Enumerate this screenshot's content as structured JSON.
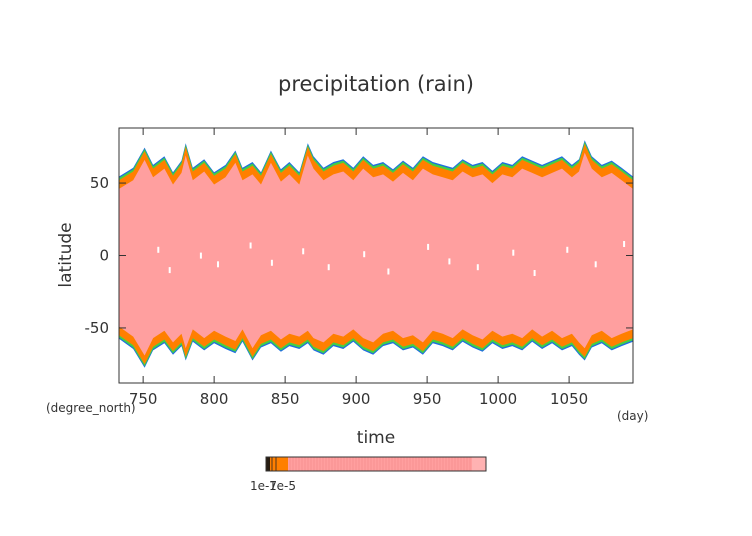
{
  "chart_data": {
    "type": "heatmap",
    "title": "precipitation (rain)",
    "xlabel": "time",
    "ylabel": "latitude",
    "x_unit": "(day)",
    "y_unit": "(degree_north)",
    "xlim": [
      733,
      1095
    ],
    "ylim": [
      -88,
      88
    ],
    "x_ticks": [
      750,
      800,
      850,
      900,
      950,
      1000,
      1050
    ],
    "y_ticks": [
      -50,
      0,
      50
    ],
    "grid": false,
    "rain_band_edges": {
      "time": [
        733,
        743,
        751,
        757,
        765,
        771,
        777,
        780,
        785,
        793,
        800,
        808,
        815,
        820,
        827,
        833,
        840,
        847,
        853,
        860,
        866,
        870,
        877,
        884,
        891,
        898,
        905,
        912,
        919,
        926,
        933,
        940,
        947,
        954,
        961,
        968,
        975,
        982,
        989,
        996,
        1003,
        1010,
        1017,
        1024,
        1031,
        1038,
        1045,
        1052,
        1057,
        1061,
        1066,
        1073,
        1080,
        1087,
        1095
      ],
      "north_edge": [
        52,
        58,
        72,
        60,
        66,
        55,
        63,
        75,
        58,
        64,
        55,
        60,
        70,
        58,
        62,
        55,
        70,
        57,
        62,
        55,
        75,
        66,
        58,
        62,
        64,
        58,
        66,
        60,
        62,
        57,
        63,
        58,
        66,
        62,
        60,
        58,
        64,
        60,
        62,
        56,
        62,
        60,
        66,
        63,
        60,
        63,
        66,
        60,
        64,
        77,
        66,
        60,
        63,
        58,
        52
      ],
      "south_edge": [
        -55,
        -62,
        -75,
        -63,
        -58,
        -66,
        -60,
        -70,
        -57,
        -63,
        -58,
        -62,
        -65,
        -57,
        -70,
        -61,
        -58,
        -64,
        -60,
        -62,
        -58,
        -63,
        -66,
        -60,
        -62,
        -57,
        -63,
        -66,
        -60,
        -58,
        -63,
        -61,
        -66,
        -58,
        -60,
        -63,
        -57,
        -61,
        -64,
        -58,
        -62,
        -60,
        -63,
        -57,
        -62,
        -58,
        -63,
        -60,
        -66,
        -70,
        -61,
        -58,
        -63,
        -60,
        -57
      ]
    },
    "colorbar": {
      "tick_labels": [
        "1e-7",
        "1e-5"
      ]
    },
    "colors": {
      "rain": "#ff9f9f",
      "edge": "#ff7f00",
      "fringe": "#44d044",
      "outer": "#1f6fdf"
    }
  }
}
